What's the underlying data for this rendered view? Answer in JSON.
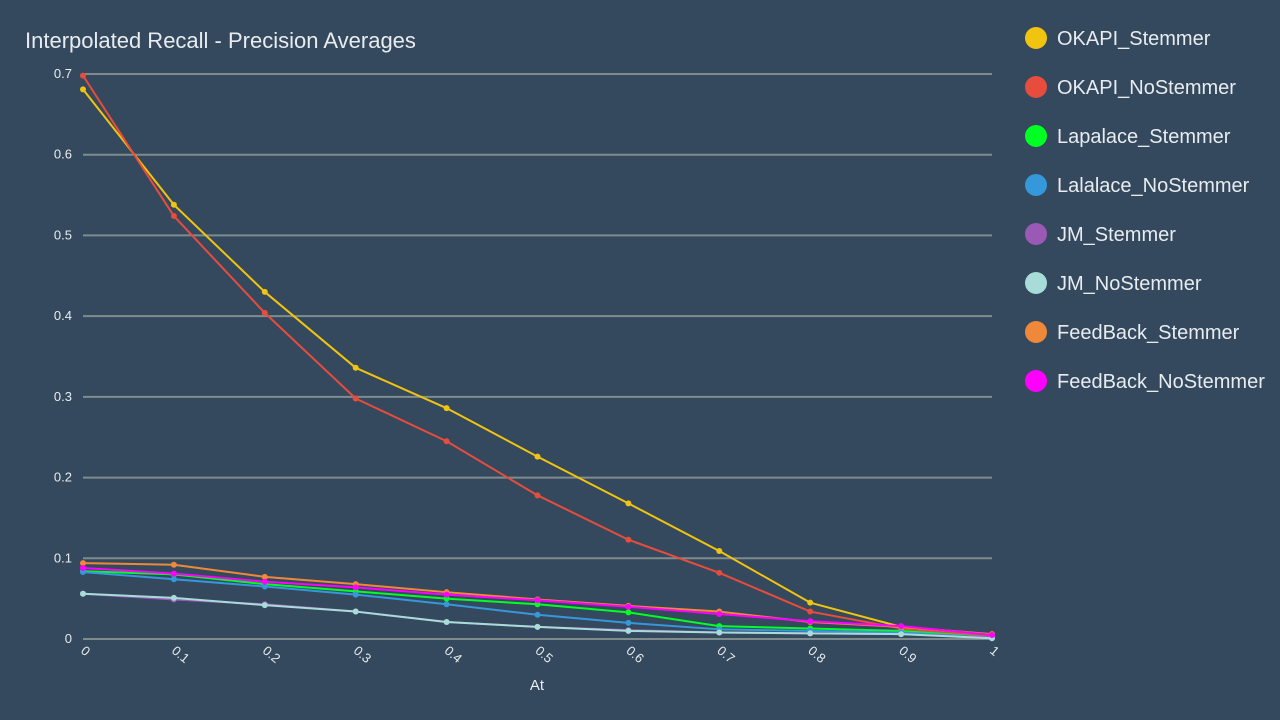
{
  "chart_data": {
    "type": "line",
    "title": "Interpolated Recall - Precision Averages",
    "xlabel": "At",
    "ylabel": "",
    "x": [
      "0",
      "0.1",
      "0.2",
      "0.3",
      "0.4",
      "0.5",
      "0.6",
      "0.7",
      "0.8",
      "0.9",
      "1"
    ],
    "y_ticks": [
      "0",
      "0.1",
      "0.2",
      "0.3",
      "0.4",
      "0.5",
      "0.6",
      "0.7"
    ],
    "ylim": [
      0,
      0.7
    ],
    "grid": true,
    "legend_position": "right",
    "series": [
      {
        "name": "OKAPI_Stemmer",
        "color": "#f1c40f",
        "values": [
          0.681,
          0.538,
          0.43,
          0.336,
          0.286,
          0.226,
          0.168,
          0.109,
          0.045,
          0.015,
          0.003
        ]
      },
      {
        "name": "OKAPI_NoStemmer",
        "color": "#e74c3c",
        "values": [
          0.698,
          0.524,
          0.404,
          0.298,
          0.245,
          0.178,
          0.123,
          0.082,
          0.034,
          0.013,
          0.003
        ]
      },
      {
        "name": "Lapalace_Stemmer",
        "color": "#00ff22",
        "values": [
          0.084,
          0.08,
          0.068,
          0.059,
          0.05,
          0.043,
          0.033,
          0.016,
          0.013,
          0.01,
          0.002
        ]
      },
      {
        "name": "Lalalace_NoStemmer",
        "color": "#3498db",
        "values": [
          0.083,
          0.074,
          0.065,
          0.055,
          0.043,
          0.03,
          0.02,
          0.012,
          0.01,
          0.008,
          0.002
        ]
      },
      {
        "name": "JM_Stemmer",
        "color": "#9b59b6",
        "values": [
          0.056,
          0.049,
          0.043,
          0.034,
          0.021,
          0.015,
          0.011,
          0.008,
          0.007,
          0.006,
          0.002
        ]
      },
      {
        "name": "JM_NoStemmer",
        "color": "#a8dcd9",
        "values": [
          0.056,
          0.051,
          0.042,
          0.034,
          0.021,
          0.015,
          0.01,
          0.008,
          0.007,
          0.006,
          0.001
        ]
      },
      {
        "name": "FeedBack_Stemmer",
        "color": "#f0883a",
        "values": [
          0.094,
          0.092,
          0.077,
          0.068,
          0.058,
          0.049,
          0.041,
          0.034,
          0.021,
          0.015,
          0.006
        ]
      },
      {
        "name": "FeedBack_NoStemmer",
        "color": "#ff00ff",
        "values": [
          0.088,
          0.081,
          0.071,
          0.064,
          0.055,
          0.048,
          0.04,
          0.031,
          0.022,
          0.016,
          0.005
        ]
      }
    ]
  }
}
